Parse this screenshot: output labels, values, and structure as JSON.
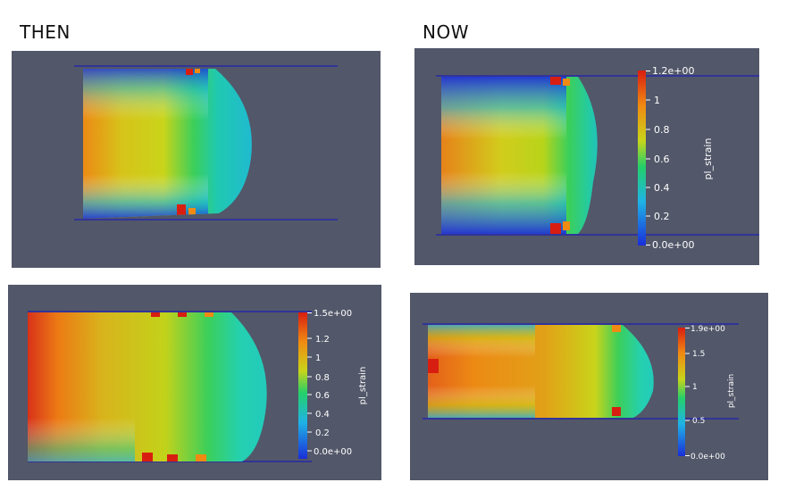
{
  "headings": {
    "left": "THEN",
    "right": "NOW"
  },
  "colors": {
    "panel_background": "#525769",
    "boundary_line": "#1010c8",
    "colormap": [
      "#1a2ed9",
      "#1fb3e6",
      "#24d06a",
      "#c9d41a",
      "#f08a12",
      "#d81e10"
    ]
  },
  "panels": [
    {
      "id": "then-top",
      "colorbar": null
    },
    {
      "id": "now-top",
      "colorbar": {
        "title": "pl_strain",
        "labels": [
          "1.2e+00",
          "1",
          "0.8",
          "0.6",
          "0.4",
          "0.2",
          "0.0e+00"
        ]
      }
    },
    {
      "id": "then-bottom",
      "colorbar": {
        "title": "pl_strain",
        "labels": [
          "1.5e+00",
          "1.2",
          "1",
          "0.8",
          "0.6",
          "0.4",
          "0.2",
          "0.0e+00"
        ]
      }
    },
    {
      "id": "now-bottom",
      "colorbar": {
        "title": "pl_strain",
        "labels": [
          "1.9e+00",
          "1.5",
          "1",
          "0.5",
          "0.0e+00"
        ]
      }
    }
  ]
}
